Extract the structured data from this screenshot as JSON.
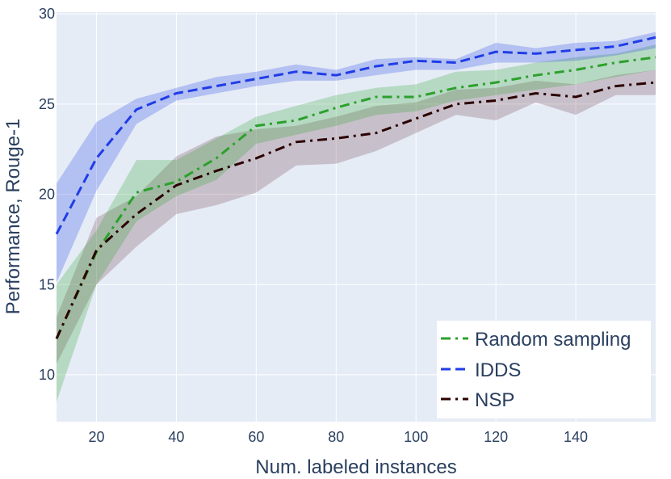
{
  "chart_data": {
    "type": "line",
    "title": "",
    "xlabel": "Num. labeled instances",
    "ylabel": "Performance, Rouge-1",
    "xlim": [
      10,
      160
    ],
    "ylim": [
      7.4,
      30.1
    ],
    "xticks": [
      20,
      40,
      60,
      80,
      100,
      120,
      140
    ],
    "yticks": [
      10,
      15,
      20,
      25,
      30
    ],
    "grid": true,
    "legend_position": "bottom-right",
    "colors": {
      "plot_bg": "#e5ecf6",
      "grid": "#ffffff",
      "legend_bg": "#ffffff"
    },
    "x": [
      10,
      20,
      30,
      40,
      50,
      60,
      70,
      80,
      90,
      100,
      110,
      120,
      130,
      140,
      150,
      160
    ],
    "series": [
      {
        "name": "Random sampling",
        "color": "#2ca02c",
        "band_color": "rgba(44,160,44,0.25)",
        "dash": "dashdot",
        "values": [
          12.0,
          16.8,
          20.1,
          20.7,
          22.0,
          23.8,
          24.1,
          24.8,
          25.4,
          25.4,
          25.9,
          26.2,
          26.6,
          26.9,
          27.3,
          27.6
        ],
        "lower": [
          8.5,
          15.0,
          18.5,
          19.9,
          20.8,
          22.8,
          23.3,
          23.8,
          24.4,
          24.6,
          25.2,
          25.5,
          25.8,
          26.1,
          26.5,
          26.9
        ],
        "upper": [
          15.0,
          18.0,
          21.9,
          21.9,
          23.1,
          24.3,
          24.9,
          25.5,
          25.9,
          26.1,
          26.8,
          26.9,
          27.3,
          27.6,
          27.8,
          28.3
        ]
      },
      {
        "name": "IDDS",
        "color": "#1f3de6",
        "band_color": "rgba(31,61,230,0.25)",
        "dash": "dash",
        "values": [
          17.8,
          22.0,
          24.7,
          25.6,
          26.0,
          26.4,
          26.8,
          26.6,
          27.1,
          27.4,
          27.3,
          27.9,
          27.8,
          28.0,
          28.2,
          28.7
        ],
        "lower": [
          15.1,
          20.2,
          23.9,
          25.2,
          25.6,
          26.0,
          26.3,
          26.3,
          26.6,
          26.9,
          26.9,
          27.3,
          27.3,
          27.4,
          27.7,
          28.1
        ],
        "upper": [
          20.6,
          24.0,
          25.3,
          25.9,
          26.5,
          26.8,
          27.2,
          26.9,
          27.5,
          27.6,
          27.5,
          28.4,
          28.1,
          28.4,
          28.5,
          29.0
        ]
      },
      {
        "name": "NSP",
        "color": "#2b0000",
        "band_color": "rgba(110,60,70,0.25)",
        "dash": "dashdot",
        "values": [
          12.0,
          16.9,
          18.9,
          20.5,
          21.3,
          22.0,
          22.9,
          23.1,
          23.4,
          24.2,
          25.0,
          25.2,
          25.6,
          25.4,
          26.0,
          26.2
        ],
        "lower": [
          10.6,
          15.0,
          17.1,
          18.9,
          19.4,
          20.1,
          21.6,
          21.7,
          22.4,
          23.4,
          24.4,
          24.1,
          25.1,
          24.4,
          25.5,
          25.5
        ],
        "upper": [
          13.2,
          18.7,
          19.9,
          22.1,
          23.2,
          23.6,
          23.8,
          24.3,
          24.9,
          25.1,
          25.8,
          25.9,
          26.3,
          26.1,
          26.6,
          26.9
        ]
      }
    ]
  }
}
